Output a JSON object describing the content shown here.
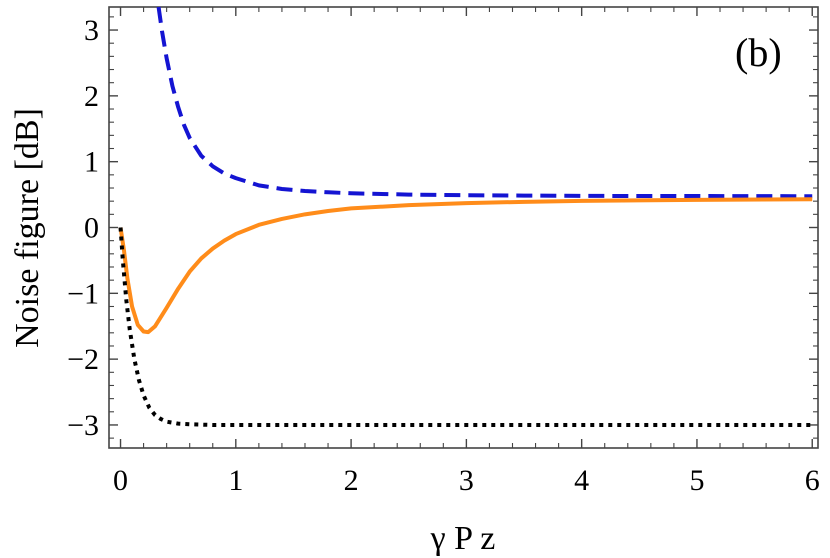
{
  "chart_data": {
    "type": "line",
    "title": "",
    "xlabel": "γ P z",
    "ylabel": "Noise figure [dB]",
    "annotation": "(b)",
    "xlim": [
      -0.1,
      6.05
    ],
    "ylim": [
      -3.35,
      3.35
    ],
    "xticks": [
      0,
      1,
      2,
      3,
      4,
      5,
      6
    ],
    "yticks": [
      -3,
      -2,
      -1,
      0,
      1,
      2,
      3
    ],
    "xtick_labels": [
      "0",
      "1",
      "2",
      "3",
      "4",
      "5",
      "6"
    ],
    "ytick_labels": [
      "−3",
      "−2",
      "−1",
      "0",
      "1",
      "2",
      "3"
    ],
    "grid": false,
    "legend": "none",
    "series": [
      {
        "color": "#1414d2",
        "dash": "dashed",
        "x": [
          0.33,
          0.36,
          0.4,
          0.45,
          0.5,
          0.55,
          0.6,
          0.7,
          0.8,
          0.9,
          1.0,
          1.2,
          1.4,
          1.6,
          1.8,
          2.0,
          2.5,
          3.0,
          3.5,
          4.0,
          5.0,
          6.0
        ],
        "y": [
          3.35,
          2.98,
          2.57,
          2.15,
          1.83,
          1.56,
          1.36,
          1.09,
          0.93,
          0.82,
          0.75,
          0.64,
          0.585,
          0.555,
          0.535,
          0.52,
          0.5,
          0.49,
          0.485,
          0.48,
          0.478,
          0.475
        ]
      },
      {
        "color": "#ff8c1a",
        "dash": "solid",
        "x": [
          0.0,
          0.03,
          0.06,
          0.1,
          0.15,
          0.2,
          0.24,
          0.3,
          0.4,
          0.5,
          0.6,
          0.7,
          0.8,
          0.9,
          1.0,
          1.2,
          1.4,
          1.6,
          1.8,
          2.0,
          2.5,
          3.0,
          3.5,
          4.0,
          5.0,
          6.0
        ],
        "y": [
          0.0,
          -0.35,
          -0.78,
          -1.2,
          -1.48,
          -1.58,
          -1.59,
          -1.5,
          -1.22,
          -0.93,
          -0.67,
          -0.47,
          -0.32,
          -0.2,
          -0.1,
          0.04,
          0.13,
          0.2,
          0.25,
          0.29,
          0.34,
          0.37,
          0.39,
          0.405,
          0.42,
          0.43
        ]
      },
      {
        "color": "#000000",
        "dash": "dotted",
        "x": [
          0.0,
          0.02,
          0.05,
          0.08,
          0.12,
          0.16,
          0.2,
          0.25,
          0.3,
          0.35,
          0.4,
          0.5,
          0.6,
          0.7,
          0.8,
          1.0,
          1.5,
          2.0,
          3.0,
          4.0,
          5.0,
          6.0
        ],
        "y": [
          0.0,
          -0.5,
          -1.1,
          -1.55,
          -2.0,
          -2.32,
          -2.55,
          -2.74,
          -2.85,
          -2.91,
          -2.95,
          -2.98,
          -2.99,
          -2.995,
          -3.0,
          -3.0,
          -3.0,
          -3.0,
          -3.0,
          -3.0,
          -3.0,
          -3.0
        ]
      }
    ]
  }
}
